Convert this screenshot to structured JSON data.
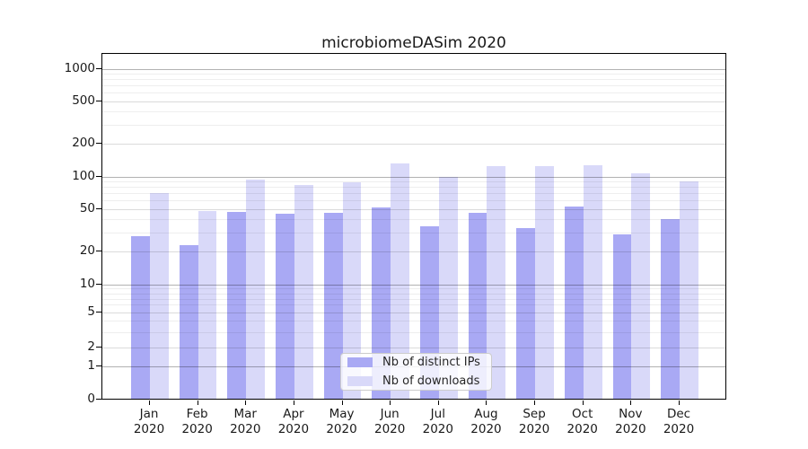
{
  "title": "microbiomeDASim 2020",
  "colors": {
    "distinct_ips_bar": "#a9a9f4",
    "downloads_bar": "#d9d9f9",
    "spine": "#000000",
    "grid_major": "#b3b3b3",
    "grid_minor": "#ededed",
    "legend_border": "#cccccc"
  },
  "legend": {
    "items": [
      {
        "label": "Nb of distinct IPs",
        "color": "#a9a9f4"
      },
      {
        "label": "Nb of downloads",
        "color": "#d9d9f9"
      }
    ]
  },
  "chart_data": {
    "type": "bar",
    "title": "microbiomeDASim 2020",
    "year": "2020",
    "categories": [
      "Jan",
      "Feb",
      "Mar",
      "Apr",
      "May",
      "Jun",
      "Jul",
      "Aug",
      "Sep",
      "Oct",
      "Nov",
      "Dec"
    ],
    "series": [
      {
        "name": "Nb of distinct IPs",
        "color": "#a9a9f4",
        "values": [
          27,
          22,
          45,
          43,
          44,
          50,
          33,
          44,
          32,
          51,
          28,
          39
        ]
      },
      {
        "name": "Nb of downloads",
        "color": "#d9d9f9",
        "values": [
          68,
          46,
          90,
          80,
          85,
          128,
          96,
          119,
          121,
          122,
          102,
          86
        ]
      }
    ],
    "xlabel": "",
    "ylabel": "",
    "yticks": [
      0,
      1,
      2,
      5,
      10,
      20,
      50,
      100,
      200,
      500,
      1000
    ],
    "yscale": "log-like (custom, linear near zero)",
    "ylim": [
      0,
      1400
    ],
    "grid": true,
    "legend_position": "inside bottom-center"
  }
}
